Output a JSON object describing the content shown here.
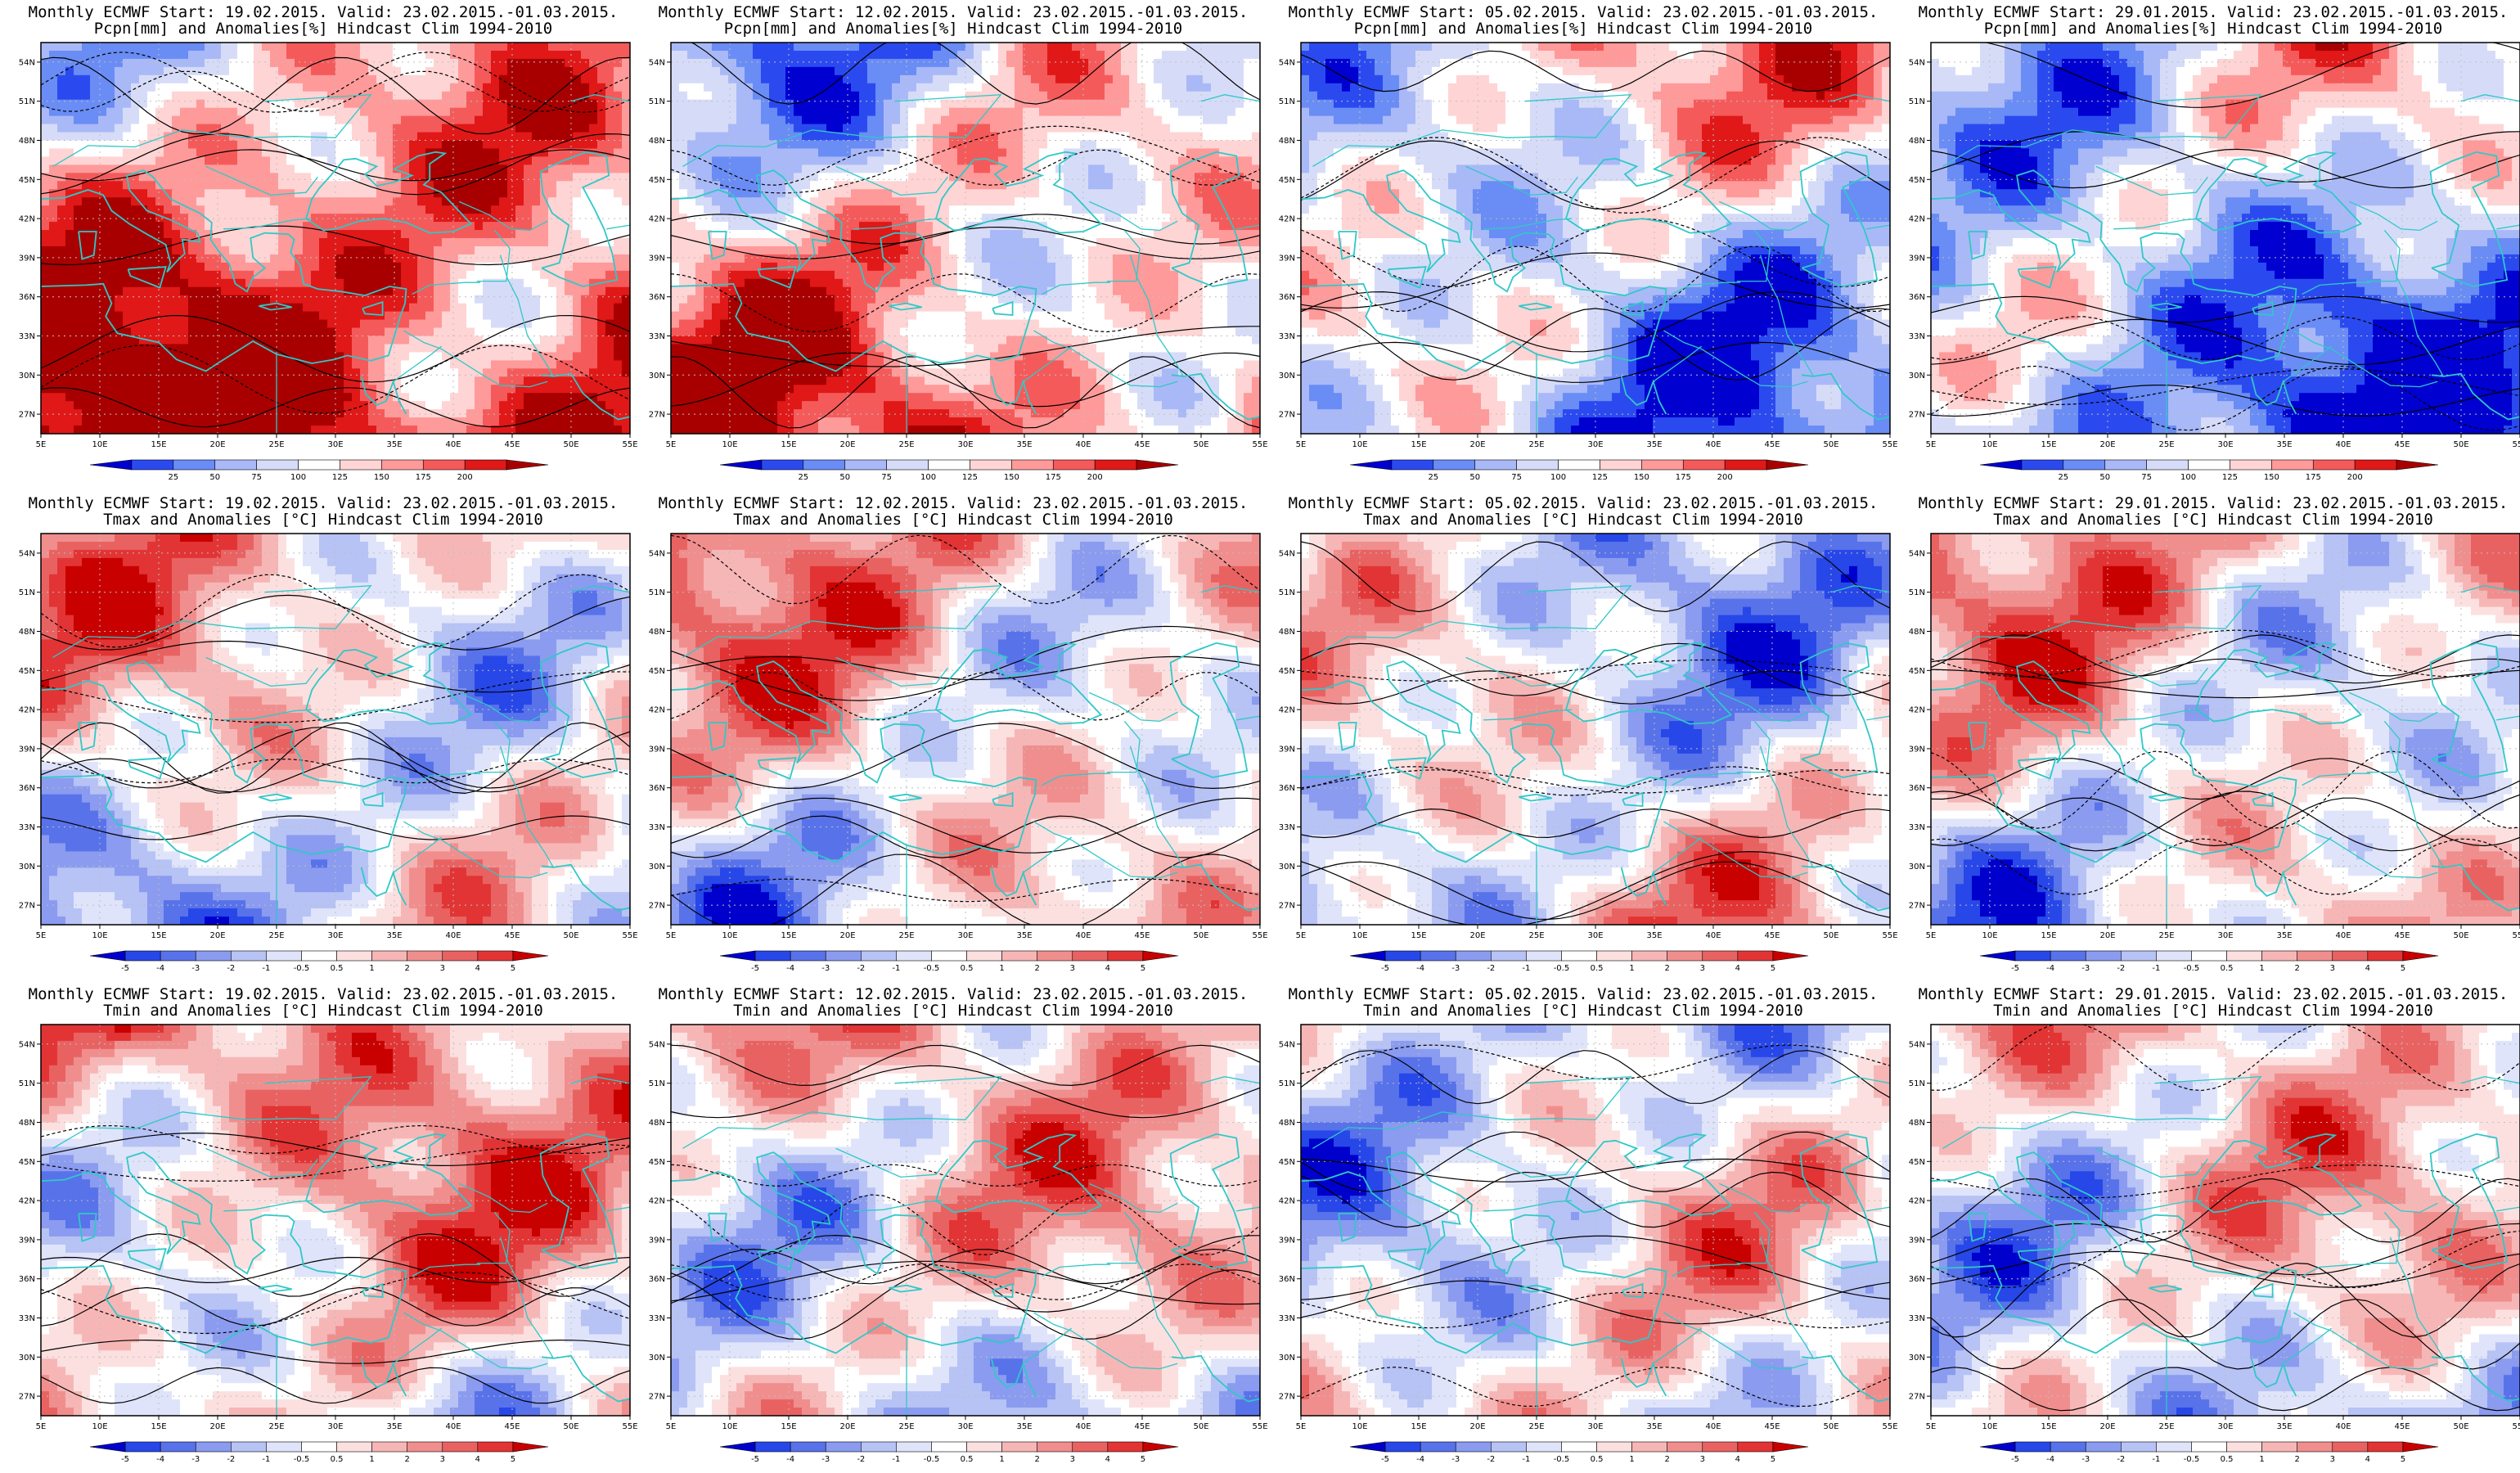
{
  "figure": {
    "rows": [
      {
        "variable": "Pcpn[mm] and Anomalies[%] Hindcast Clim 1994-2010",
        "scale": "precip",
        "colorbar_labels": [
          "25",
          "50",
          "75",
          "100",
          "125",
          "150",
          "175",
          "200"
        ],
        "panels": [
          {
            "title": "Monthly ECMWF Start: 19.02.2015. Valid: 23.02.2015.-01.03.2015.",
            "anomaly_bias": 0.55
          },
          {
            "title": "Monthly ECMWF Start: 12.02.2015. Valid: 23.02.2015.-01.03.2015.",
            "anomaly_bias": 0.15
          },
          {
            "title": "Monthly ECMWF Start: 05.02.2015. Valid: 23.02.2015.-01.03.2015.",
            "anomaly_bias": -0.15
          },
          {
            "title": "Monthly ECMWF Start: 29.01.2015. Valid: 23.02.2015.-01.03.2015.",
            "anomaly_bias": -0.35
          }
        ]
      },
      {
        "variable": "Tmax and Anomalies [°C] Hindcast Clim 1994-2010",
        "scale": "temp",
        "colorbar_labels": [
          "-5",
          "-4",
          "-3",
          "-2",
          "-1",
          "-0.5",
          "0.5",
          "1",
          "2",
          "3",
          "4",
          "5"
        ],
        "panels": [
          {
            "title": "Monthly ECMWF Start: 19.02.2015. Valid: 23.02.2015.-01.03.2015.",
            "anomaly_bias": 0.05
          },
          {
            "title": "Monthly ECMWF Start: 12.02.2015. Valid: 23.02.2015.-01.03.2015.",
            "anomaly_bias": 0.15
          },
          {
            "title": "Monthly ECMWF Start: 05.02.2015. Valid: 23.02.2015.-01.03.2015.",
            "anomaly_bias": -0.05
          },
          {
            "title": "Monthly ECMWF Start: 29.01.2015. Valid: 23.02.2015.-01.03.2015.",
            "anomaly_bias": 0.1
          }
        ]
      },
      {
        "variable": "Tmin and Anomalies [°C] Hindcast Clim 1994-2010",
        "scale": "temp",
        "colorbar_labels": [
          "-5",
          "-4",
          "-3",
          "-2",
          "-1",
          "-0.5",
          "0.5",
          "1",
          "2",
          "3",
          "4",
          "5"
        ],
        "panels": [
          {
            "title": "Monthly ECMWF Start: 19.02.2015. Valid: 23.02.2015.-01.03.2015.",
            "anomaly_bias": 0.25
          },
          {
            "title": "Monthly ECMWF Start: 12.02.2015. Valid: 23.02.2015.-01.03.2015.",
            "anomaly_bias": 0.1
          },
          {
            "title": "Monthly ECMWF Start: 05.02.2015. Valid: 23.02.2015.-01.03.2015.",
            "anomaly_bias": -0.05
          },
          {
            "title": "Monthly ECMWF Start: 29.01.2015. Valid: 23.02.2015.-01.03.2015.",
            "anomaly_bias": 0.05
          }
        ]
      }
    ],
    "axes": {
      "lon_labels": [
        "5E",
        "10E",
        "15E",
        "20E",
        "25E",
        "30E",
        "35E",
        "40E",
        "45E",
        "50E",
        "55E"
      ],
      "lat_labels": [
        "27N",
        "30N",
        "33N",
        "36N",
        "39N",
        "42N",
        "45N",
        "48N",
        "51N",
        "54N"
      ],
      "lon_range": [
        5,
        55
      ],
      "lat_range": [
        25.5,
        55.5
      ]
    },
    "colors": {
      "precip": [
        "#0000d0",
        "#2a4af0",
        "#6a8cf5",
        "#a9b9f7",
        "#d6dcf8",
        "#ffffff",
        "#ffd4d4",
        "#ff9a9a",
        "#f55a5a",
        "#e01818",
        "#a80000"
      ],
      "temp": [
        "#0000cc",
        "#2747e8",
        "#5872ea",
        "#8a9bf0",
        "#b7c2f5",
        "#dfe4fa",
        "#ffffff",
        "#fce0e0",
        "#f7b6b6",
        "#f08e8e",
        "#e96262",
        "#e23434",
        "#c80000"
      ],
      "coast": "#30c8c8",
      "contour": "#000000"
    }
  }
}
